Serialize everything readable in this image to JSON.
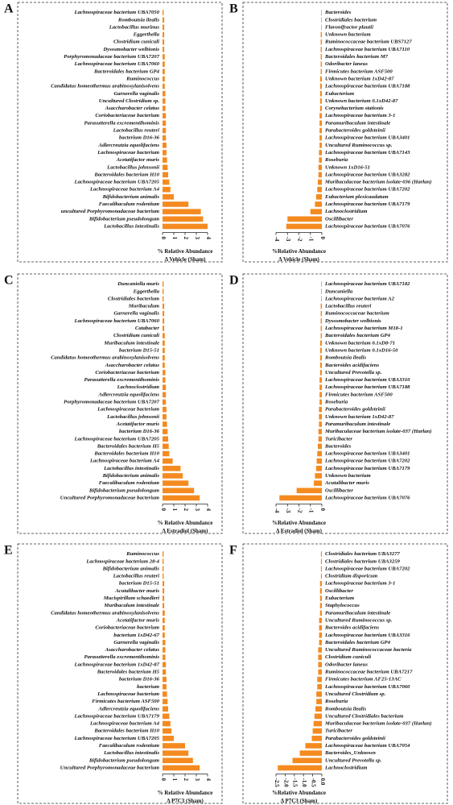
{
  "chart_data": [
    {
      "type": "bar",
      "orientation": "horizontal",
      "label": "A",
      "color": "#f58a1f",
      "categories": [
        "Lachnospiraceae bacterium UBA7050",
        "Romboutsia ilealis",
        "Lactobacillus murinus",
        "Eggerthella",
        "Clostridium cuniculi",
        "Dysosmobacter welbionis",
        "Porphyromonadaceae bacterium UBA7207",
        "Lachnospiraceae bacterium UBA7060",
        "Bacteroidales bacterium GP4",
        "Ruminococcus",
        "Candidatus homeothermus arabinoxylanisolvens",
        "Garnerella vaginalis",
        "Uncultured Clostridium sp.",
        "Asaccharobacter celatus",
        "Coriobacteriaceae bacterium",
        "Parasutterella excrementihominis",
        "Lactobacillus reuteri",
        "bacterium D16-36",
        "Adlercreutzia equolifaciens",
        "Lachnospiraceae bacterium",
        "Acetatifactor muris",
        "Lactobacillus johnsonii",
        "Bacteroidales bacterium H10",
        "Lachnospiraceae bacterium UBA7205",
        "Lachnospiraceae bacterium A4",
        "Bifidobacterium animalis",
        "Faecalibaculum rodentium",
        "uncultured Porphyromonadaceae bacterium",
        "Bifidobacterium pseudolongum",
        "Lactobacillus intestinalis"
      ],
      "values": [
        0.1,
        0.15,
        0.15,
        0.15,
        0.15,
        0.15,
        0.2,
        0.2,
        0.2,
        0.2,
        0.2,
        0.25,
        0.25,
        0.25,
        0.3,
        0.3,
        0.3,
        0.3,
        0.35,
        0.35,
        0.4,
        0.45,
        0.5,
        0.6,
        0.7,
        1.0,
        2.3,
        3.4,
        3.6,
        4.0
      ],
      "xlim": [
        0,
        4
      ],
      "xticks": [
        0,
        1,
        2,
        3,
        4
      ],
      "xlabel": [
        "% Relative Abundance",
        "Δ Vehicle (Sham)"
      ]
    },
    {
      "type": "bar",
      "orientation": "horizontal",
      "label": "B",
      "color": "#f58a1f",
      "categories": [
        "Bacteroides",
        "Clostridiales bacterium",
        "Flavonifractor plautii",
        "Unknown bacterium",
        "Ruminococcaceae bacterium UBS7127",
        "Lachnospiraceae bacterium UBA7110",
        "Bacteroidales bacterium M7",
        "Odoribacter laneus",
        "Firmicutes bacterium ASF500",
        "Unknown bacterium 1xD42-87",
        "Lachnospiraceae bacterium UBA7188",
        "Eubacterium",
        "Unknown bacterium 0.1xD42-87",
        "Corynebacterium stationis",
        "Lachnospiraceae bacterium 3-1",
        "Paramuribaculum intestinale",
        "Parabacteroides goldsteinii",
        "Lachnospiraceae bacterium UBA3401",
        "Uncultured Ruminococcus sp.",
        "Lachnospiraceae bacterium UBA7143",
        "Roseburia",
        "Unknown 1xD16-51",
        "Lachnospiraceae bacterium UBA3282",
        "Muribaculaceae bacterium isolate-036 (Harlan)",
        "Lachnospiraceae bacterium UBA7202",
        "Eubacterium plexicaudatum",
        "Lachnospiraceae bacterium UBA7179",
        "Lachnoclostridium",
        "Oscillibacter",
        "Lachnospiraceae bacterium UBA7076"
      ],
      "values": [
        -0.05,
        -0.05,
        -0.05,
        -0.1,
        -0.1,
        -0.1,
        -0.1,
        -0.1,
        -0.1,
        -0.15,
        -0.15,
        -0.15,
        -0.15,
        -0.15,
        -0.2,
        -0.2,
        -0.2,
        -0.2,
        -0.2,
        -0.25,
        -0.25,
        -0.3,
        -0.3,
        -0.35,
        -0.4,
        -0.5,
        -0.6,
        -1.0,
        -3.0,
        -3.1
      ],
      "xlim": [
        -4,
        0
      ],
      "xticks": [
        -4,
        -3,
        -2,
        -1,
        0
      ],
      "xlabel": [
        "%Relative Abundance",
        "Δ Vehicle (Sham)"
      ]
    },
    {
      "type": "bar",
      "orientation": "horizontal",
      "label": "C",
      "color": "#f58a1f",
      "categories": [
        "Duncaniella muris",
        "Eggerthella",
        "Clostridiales bacterium",
        "Muribaculum",
        "Garnerella vaginalis",
        "Lachnospiraceae bacterium UBA7060",
        "Catabacter",
        "Clostridium cuniculi",
        "Muribaculum intestinale",
        "bacterium D15-51",
        "Candidatus homeothermus arabinoxylanisolvens",
        "Asaccharobacter celatus",
        "Coriobacteriaceae bacterium",
        "Parasutterella excrementihominis",
        "Lachnoclostridium",
        "Adlercreutzia equolifaciens",
        "Porphyromonadaceae bacterium UBA7207",
        "Lachnospiraceae bacterium",
        "Lactobacillus johnsonii",
        "Acetatifactor muris",
        "bacterium D16-36",
        "Lachnospiraceae bacterium UBA7205",
        "Bacteroidales bacterium H5",
        "Bacteroidales bacterium H10",
        "Lachnospiraceae bacterium A4",
        "Lactobacillus intestinalis",
        "Bifidobacterium animalis",
        "Faecalibaculum rodentium",
        "Bifidobacterium pseudolongum",
        "Uncultured Porphyromonadaceae bacterium"
      ],
      "values": [
        0.1,
        0.1,
        0.1,
        0.15,
        0.15,
        0.15,
        0.15,
        0.2,
        0.2,
        0.2,
        0.2,
        0.2,
        0.25,
        0.25,
        0.3,
        0.3,
        0.3,
        0.35,
        0.35,
        0.4,
        0.45,
        0.5,
        0.55,
        0.6,
        0.9,
        1.6,
        1.8,
        2.3,
        2.8,
        3.3
      ],
      "xlim": [
        0,
        4
      ],
      "xticks": [
        0,
        1,
        2,
        3,
        4
      ],
      "xlabel": [
        "% Relative Abundance",
        "Δ Estradiol (Sham)"
      ]
    },
    {
      "type": "bar",
      "orientation": "horizontal",
      "label": "D",
      "color": "#f58a1f",
      "categories": [
        "Lachnospiraceae bacterium UBA7182",
        "Duncaniella",
        "Lachnospiraceae bacterium A2",
        "Lactobacillus reuteri",
        "Ruminococcaceae bacterium",
        "Dysosmobacter welbionis",
        "Lachnospiraceae bacterium M18-1",
        "Bacteroidales bacterium GP4",
        "Unknown bacterium 0.1xD8-71",
        "Unknown bacterium 0.1xD16-50",
        "Romboutsia ilealis",
        "Bacteroides acidifaciens",
        "Uncultured Prevotella sp.",
        "Lachnospiraceae bacterium UBA3310",
        "Lachnospiraceae bacterium UBA7188",
        "Firmicutes bacterium ASF500",
        "Roseburia",
        "Parabacteroides goldsteinii",
        "Unknown bacterium 1xD42-87",
        "Paramuribaculum intestinale",
        "Muribaculaceae bacterium isolate-037 (Harlan)",
        "Turicibacter",
        "Bacteroides",
        "Lachnospiraceae bacterium UBA3401",
        "Lachnospiraceae bacterium UBA7202",
        "Lachnospiraceae bacterium UBA7179",
        "Unknown bacterium",
        "Acutalibacter muris",
        "Oscillibacter",
        "Lachnospiraceae bacterium UBA7076"
      ],
      "values": [
        -0.05,
        -0.05,
        -0.05,
        -0.1,
        -0.1,
        -0.1,
        -0.1,
        -0.1,
        -0.15,
        -0.15,
        -0.15,
        -0.15,
        -0.15,
        -0.2,
        -0.2,
        -0.2,
        -0.2,
        -0.25,
        -0.25,
        -0.25,
        -0.3,
        -0.3,
        -0.35,
        -0.4,
        -0.45,
        -0.5,
        -0.6,
        -0.7,
        -2.2,
        -3.7
      ],
      "xlim": [
        -4,
        0
      ],
      "xticks": [
        -4,
        -3,
        -2,
        -1,
        0
      ],
      "xlabel": [
        "%Relative Abundance",
        "Δ Estradiol (Sham)"
      ]
    },
    {
      "type": "bar",
      "orientation": "horizontal",
      "label": "E",
      "color": "#f58a1f",
      "categories": [
        "Ruminococcus",
        "Lachnospiraceae bacterium 28-4",
        "Bifidobacterium animalis",
        "Lactobacillus reuteri",
        "bacterium D15-51",
        "Acutalibacter muris",
        "Mucispirillum schaedleri",
        "Muribaculum intestinale",
        "Candidatus homeothermus arabinoxylanisolvens",
        "Acetatifactor muris",
        "Coriobacteriaceae bacterium",
        "bacterium 1xD42-67",
        "Garnerella vaginalis",
        "Asaccharobacter celatus",
        "Parasutterella excrementihominis",
        "Lachnospiraceae bacterium 1xD42-87",
        "Bacteroidales bacterium H5",
        "bacterium D16-36",
        "bacterium",
        "Lachnospiraceae bacterium",
        "Firmicutes bacterium ASF500",
        "Adlercreutzia equolifaciens",
        "Lachnospiraceae bacterium UBA7179",
        "Lachnospiraceae bacterium A4",
        "Bacteroidales bacterium H10",
        "Lachnospiraceae bacterium UBA7205",
        "Faecalibaculum rodentium",
        "Lactobacillus intestinalis",
        "Bifidobacterium pseudolongum",
        "Uncultured Porphyromonadaceae bacterium"
      ],
      "values": [
        0.1,
        0.1,
        0.1,
        0.1,
        0.15,
        0.15,
        0.15,
        0.15,
        0.2,
        0.2,
        0.2,
        0.2,
        0.25,
        0.25,
        0.25,
        0.3,
        0.3,
        0.35,
        0.35,
        0.4,
        0.45,
        0.5,
        0.6,
        0.7,
        0.8,
        1.0,
        2.0,
        2.3,
        2.7,
        3.3
      ],
      "xlim": [
        0,
        4
      ],
      "xticks": [
        0,
        1,
        2,
        3,
        4
      ],
      "xlabel": [
        "% Relative Abundance",
        "Δ P7C3 (Sham)"
      ]
    },
    {
      "type": "bar",
      "orientation": "horizontal",
      "label": "F",
      "color": "#f58a1f",
      "categories": [
        "Clostridiales bacterium UBA3277",
        "Clostridiales bacterium UBA3259",
        "Lachnospiraceae bacterium UBA7202",
        "Clostridium disporicum",
        "Lachnospiraceae bacterium 3-1",
        "Oscillibacter",
        "Eubacterium",
        "Staphylococcus",
        "Paramuribaculum intestinale",
        "Uncultured Ruminococcus sp.",
        "Bacteroides acidifaciens",
        "Lachnospiraceae bacterium UBA3316",
        "Bacteroidales bacterium GP4",
        "Uncultured Ruminococcaceae bacteria",
        "Clostridium cuniculi",
        "Odoribacter laneus",
        "Ruminococcaceae bacterium UBA7217",
        "Firmicutes bacterium AF25-13AC",
        "Lachnospiraceae bacterium UBA7060",
        "Uncultured Clostridium sp.",
        "Roseburia",
        "Romboutsia ilealis",
        "Uncultured Clostridiales bacterium",
        "Muribaculaceae bacterium isolate-037 (Harlan)",
        "Turicibacter",
        "Parabacteroides goldsteinii",
        "Lachnospiraceae bacterium UBA7054",
        "Bacteroides_Unknown",
        "Uncultured Prevotella sp.",
        "Lachnoclostridium"
      ],
      "values": [
        -0.05,
        -0.05,
        -0.05,
        -0.05,
        -0.1,
        -0.1,
        -0.1,
        -0.1,
        -0.1,
        -0.15,
        -0.15,
        -0.15,
        -0.15,
        -0.2,
        -0.2,
        -0.2,
        -0.2,
        -0.25,
        -0.25,
        -0.3,
        -0.3,
        -0.35,
        -0.4,
        -0.45,
        -0.5,
        -0.55,
        -0.9,
        -1.2,
        -1.6,
        -2.4
      ],
      "xlim": [
        -2.5,
        0
      ],
      "xticks": [
        -2.5,
        {
          "value": -2,
          "label": "-2.0"
        },
        -1.5,
        {
          "value": -1,
          "label": "-1.0"
        },
        -0.5,
        {
          "value": 0,
          "label": "0.0"
        }
      ],
      "xlabel": [
        "%Relative Abundance",
        "Δ P7C3 (Sham)"
      ]
    }
  ]
}
